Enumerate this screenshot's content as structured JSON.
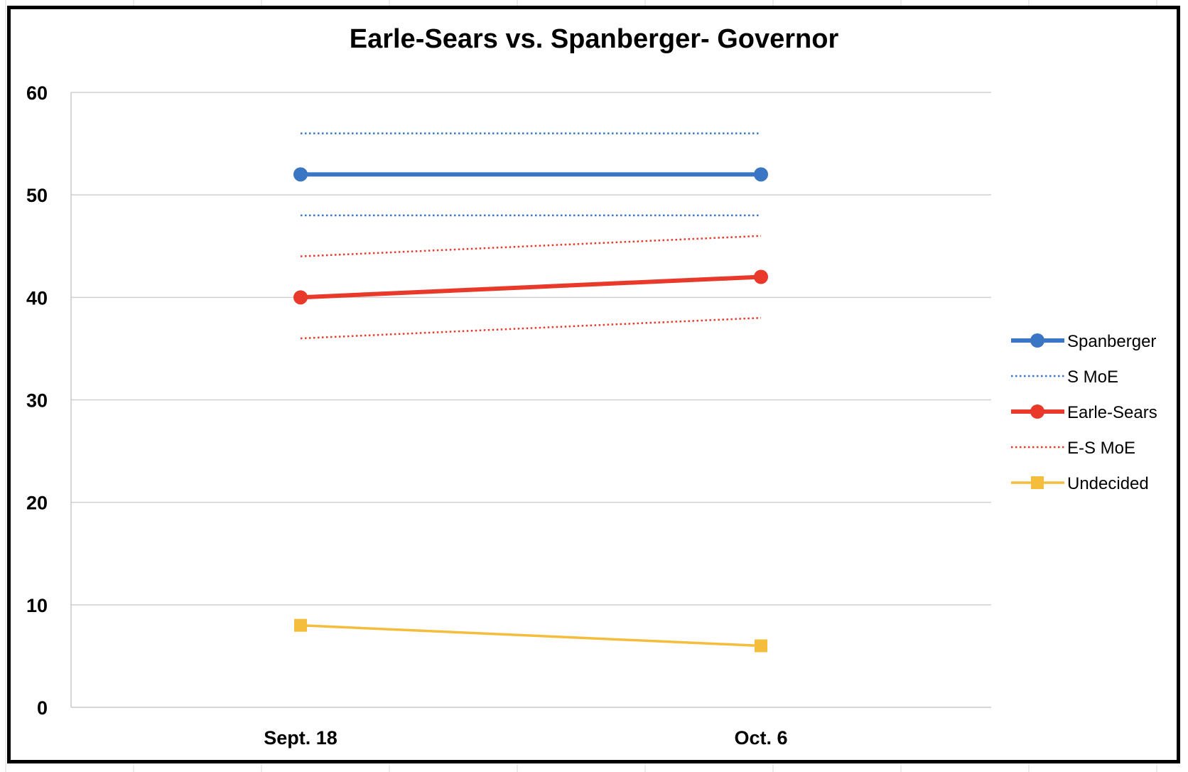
{
  "chart_data": {
    "type": "line",
    "title": "Earle-Sears vs. Spanberger- Governor",
    "xlabel": "",
    "ylabel": "",
    "categories": [
      "Sept. 18",
      "Oct. 6"
    ],
    "ylim": [
      0,
      60
    ],
    "yticks": [
      0,
      10,
      20,
      30,
      40,
      50,
      60
    ],
    "grid": true,
    "legend_position": "right",
    "series": [
      {
        "name": "Spanberger",
        "values": [
          52,
          52
        ],
        "color": "#3A76C4",
        "style": "solid",
        "marker": "circle"
      },
      {
        "name": "S MoE",
        "values": [
          56,
          56
        ],
        "color": "#3A76C4",
        "style": "dotted",
        "marker": "none"
      },
      {
        "name": "S MoE",
        "values": [
          48,
          48
        ],
        "color": "#3A76C4",
        "style": "dotted",
        "marker": "none",
        "legend": false
      },
      {
        "name": "Earle-Sears",
        "values": [
          40,
          42
        ],
        "color": "#E8392B",
        "style": "solid",
        "marker": "circle"
      },
      {
        "name": "E-S MoE",
        "values": [
          44,
          46
        ],
        "color": "#E8392B",
        "style": "dotted",
        "marker": "none"
      },
      {
        "name": "E-S MoE",
        "values": [
          36,
          38
        ],
        "color": "#E8392B",
        "style": "dotted",
        "marker": "none",
        "legend": false
      },
      {
        "name": "Undecided",
        "values": [
          8,
          6
        ],
        "color": "#F4BE3C",
        "style": "solid",
        "marker": "square"
      }
    ]
  }
}
